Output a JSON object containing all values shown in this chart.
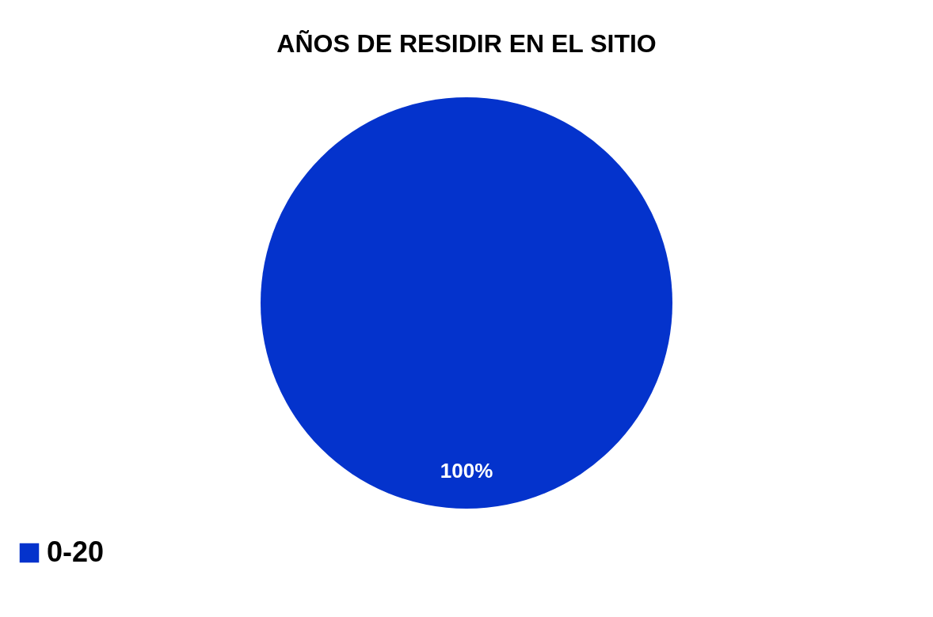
{
  "chart_data": {
    "type": "pie",
    "title": "AÑOS DE RESIDIR EN EL SITIO",
    "categories": [
      "0-20"
    ],
    "values": [
      100
    ],
    "colors": [
      "#0433cc"
    ],
    "value_labels": [
      "100%"
    ],
    "legend": "bottom"
  }
}
